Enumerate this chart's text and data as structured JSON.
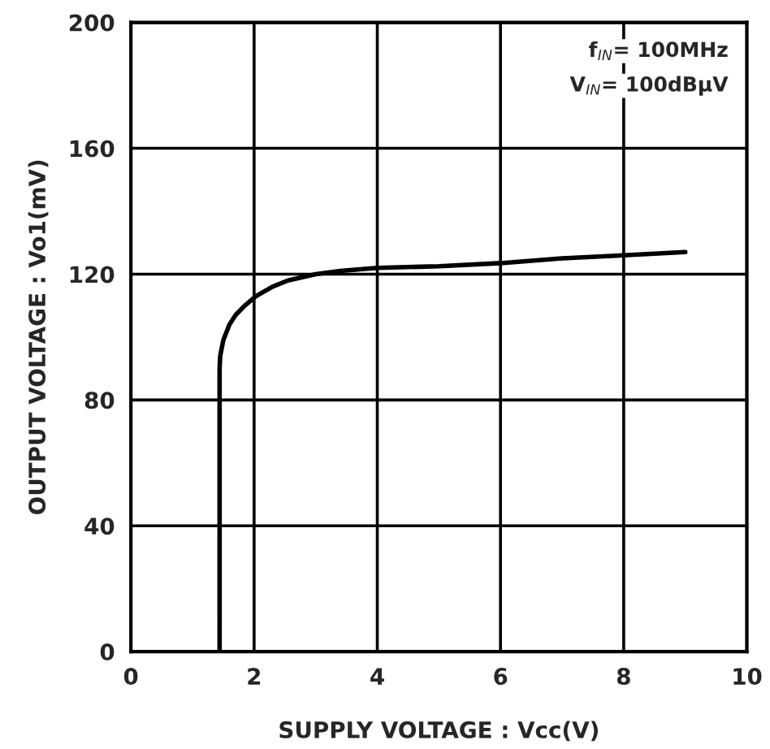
{
  "chart_data": {
    "type": "line",
    "xlabel": "SUPPLY VOLTAGE : Vcc(V)",
    "ylabel": "OUTPUT VOLTAGE : Vo1(mV)",
    "annotations": [
      "f$_{IN}$= 100MHz",
      "V$_{IN}$= 100dBμV"
    ],
    "series": [
      {
        "color": "#000000",
        "x": [
          1.44,
          1.44,
          1.45,
          1.5,
          1.6,
          1.7,
          1.85,
          2.03,
          2.3,
          2.55,
          3.0,
          3.4,
          4.0,
          5.0,
          6.0,
          7.0,
          8.0,
          9.0
        ],
        "values": [
          0,
          90,
          94,
          99,
          104,
          107,
          110,
          113,
          116,
          118,
          120,
          121,
          122,
          122.5,
          123.5,
          125,
          126,
          127
        ]
      }
    ],
    "xlim": [
      0,
      10
    ],
    "ylim": [
      0,
      200
    ],
    "xticks": [
      0,
      2,
      4,
      6,
      8,
      10
    ],
    "yticks": [
      0,
      40,
      80,
      120,
      160,
      200
    ],
    "grid": true,
    "marker": "none",
    "line_style": "solid"
  }
}
